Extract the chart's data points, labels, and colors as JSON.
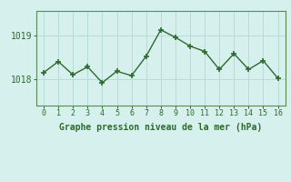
{
  "x": [
    0,
    1,
    2,
    3,
    4,
    5,
    6,
    7,
    8,
    9,
    10,
    11,
    12,
    13,
    14,
    15,
    16
  ],
  "y": [
    1018.15,
    1018.4,
    1018.1,
    1018.28,
    1017.92,
    1018.18,
    1018.08,
    1018.52,
    1019.12,
    1018.95,
    1018.75,
    1018.63,
    1018.22,
    1018.58,
    1018.22,
    1018.42,
    1018.02
  ],
  "line_color": "#2d6a2d",
  "marker": "+",
  "marker_color": "#2d6a2d",
  "bg_color": "#d6f0ee",
  "grid_color": "#b8dbd8",
  "axis_color": "#5a8a5a",
  "tick_color": "#2d6a2d",
  "xlabel": "Graphe pression niveau de la mer (hPa)",
  "xlabel_color": "#2d6a2d",
  "yticks": [
    1018,
    1019
  ],
  "xlim": [
    -0.5,
    16.5
  ],
  "ylim": [
    1017.4,
    1019.55
  ],
  "font_family": "monospace",
  "linewidth": 1.0,
  "markersize": 5,
  "markeredgewidth": 1.2
}
